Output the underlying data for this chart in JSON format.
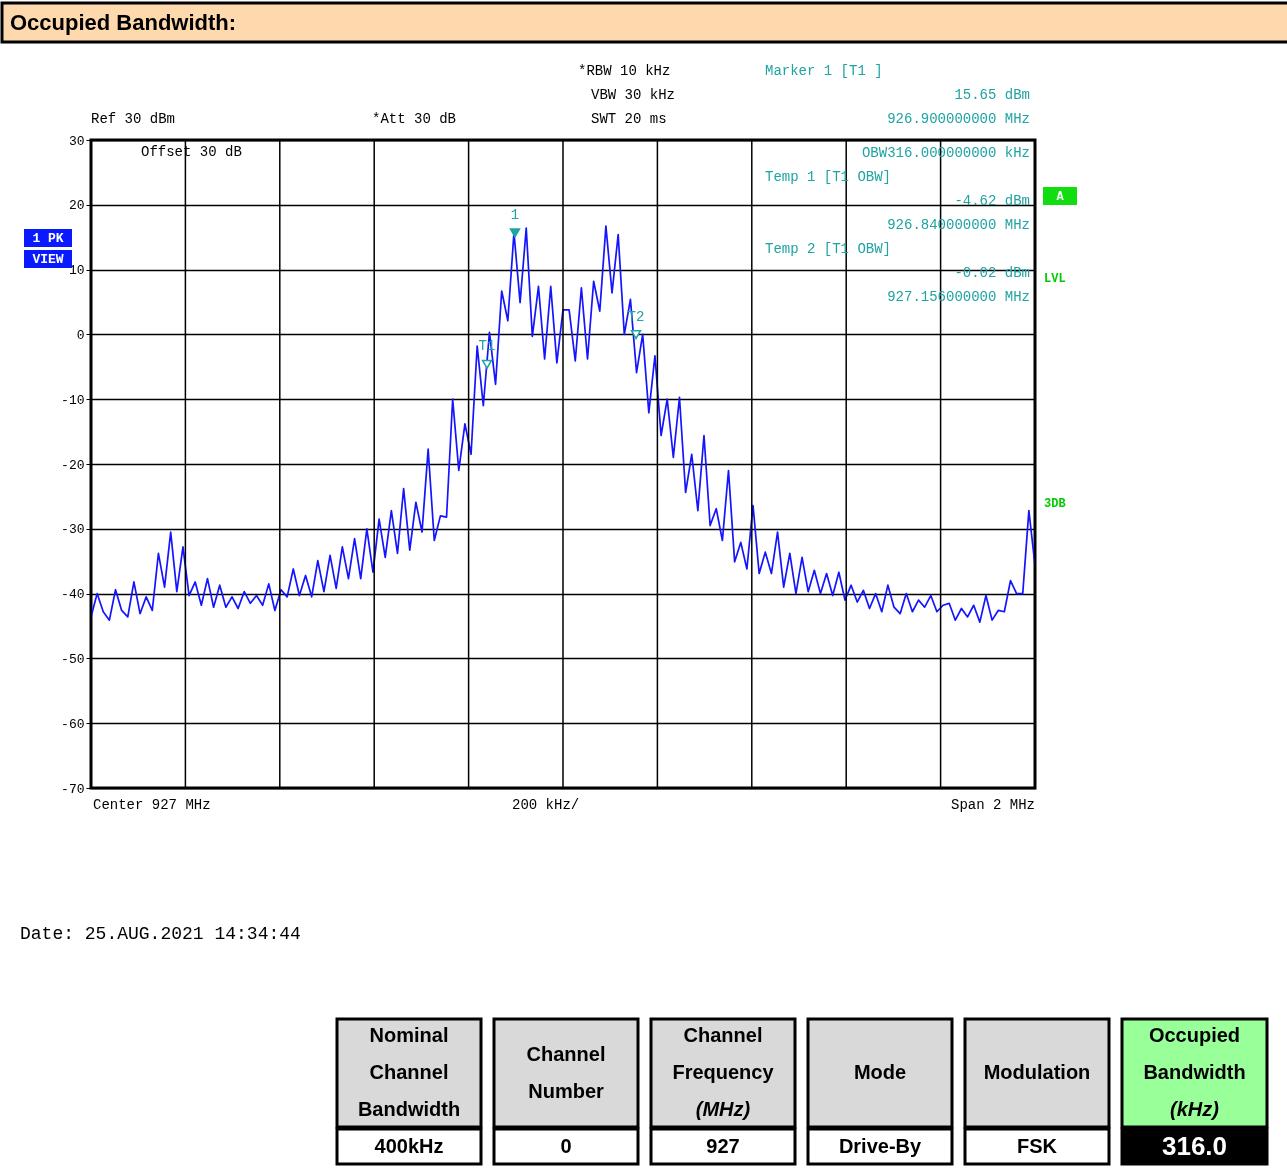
{
  "chart_data": {
    "type": "line",
    "title": "Occupied Bandwidth:",
    "categories": [
      null,
      null,
      null,
      null,
      null,
      null,
      null,
      null,
      null,
      null,
      null,
      null,
      null,
      null,
      null,
      null,
      null,
      null,
      null,
      null,
      null,
      null,
      null,
      null,
      null,
      null,
      null,
      null,
      null,
      null,
      null,
      null,
      null,
      null,
      null,
      null,
      null,
      null,
      null,
      null,
      null,
      null,
      null,
      null,
      null,
      null,
      null,
      null,
      null,
      null,
      null,
      null,
      null,
      null,
      null,
      null,
      null,
      null,
      null,
      null,
      null,
      null,
      null,
      null,
      null,
      null,
      null,
      null,
      null,
      null,
      null,
      null,
      null,
      null,
      null,
      null,
      null,
      null,
      null,
      null,
      null,
      null,
      null,
      null,
      null,
      null,
      null,
      null,
      null,
      null,
      null,
      null,
      null,
      null,
      null,
      null,
      null,
      null,
      null,
      null,
      null,
      null,
      null,
      null,
      null,
      null,
      null,
      null,
      null,
      null,
      null,
      null,
      null,
      null,
      null,
      null,
      null,
      null,
      null,
      null,
      null,
      null,
      null,
      null,
      null,
      null,
      null,
      null,
      null,
      null,
      null,
      null,
      null,
      null,
      null,
      null,
      null,
      null,
      null,
      null,
      null,
      null,
      null,
      null,
      null,
      null,
      null,
      null,
      null,
      null,
      null,
      null,
      null,
      null,
      null
    ],
    "ylim": [
      -70,
      30
    ],
    "yticks": [
      30,
      20,
      10,
      0,
      -10,
      -20,
      -30,
      -40,
      -50,
      -60,
      -70
    ],
    "grid": true,
    "line_style": "solid",
    "series": [
      {
        "color": "#1414ff",
        "values": [
          -43.6,
          -40.0,
          -42.8,
          -44.1,
          -39.4,
          -42.6,
          -43.6,
          -38.2,
          -43.1,
          -40.5,
          -42.6,
          -33.8,
          -39.0,
          -30.5,
          -39.7,
          -32.8,
          -40.3,
          -38.2,
          -41.8,
          -37.7,
          -42.1,
          -38.7,
          -42.1,
          -40.5,
          -42.3,
          -39.7,
          -41.5,
          -40.3,
          -41.8,
          -38.5,
          -42.6,
          -39.4,
          -40.5,
          -36.2,
          -40.3,
          -37.2,
          -40.5,
          -34.9,
          -39.7,
          -34.1,
          -39.2,
          -32.8,
          -37.7,
          -31.5,
          -37.7,
          -30.0,
          -36.7,
          -28.5,
          -34.4,
          -27.2,
          -33.8,
          -23.8,
          -33.3,
          -25.9,
          -30.5,
          -17.7,
          -31.8,
          -28.0,
          -28.2,
          -10.0,
          -21.0,
          -13.8,
          -18.5,
          -1.8,
          -11.0,
          0.3,
          -7.7,
          6.7,
          2.1,
          15.7,
          4.9,
          16.4,
          -0.3,
          7.4,
          -3.8,
          7.4,
          -4.4,
          3.8,
          3.8,
          -4.1,
          7.2,
          -3.8,
          8.2,
          3.6,
          16.7,
          6.4,
          15.4,
          0.0,
          5.4,
          -5.9,
          0.0,
          -12.1,
          -3.3,
          -15.6,
          -10.0,
          -19.0,
          -9.7,
          -24.4,
          -18.5,
          -27.2,
          -15.6,
          -29.5,
          -26.9,
          -31.8,
          -21.0,
          -35.1,
          -32.1,
          -36.2,
          -26.4,
          -36.9,
          -33.6,
          -36.9,
          -30.5,
          -39.0,
          -33.8,
          -40.0,
          -34.4,
          -39.7,
          -36.4,
          -40.0,
          -36.9,
          -40.3,
          -36.7,
          -41.0,
          -38.7,
          -41.3,
          -39.5,
          -42.3,
          -40.0,
          -42.8,
          -38.7,
          -42.1,
          -43.1,
          -40.0,
          -42.8,
          -41.0,
          -42.1,
          -40.3,
          -42.8,
          -41.8,
          -41.5,
          -44.1,
          -42.3,
          -43.6,
          -41.8,
          -44.4,
          -40.3,
          -44.1,
          -42.6,
          -42.8,
          -38.0,
          -40.0,
          -40.0,
          -27.2,
          -35.6
        ]
      }
    ],
    "annotations": [
      "Ref 30 dBm",
      "*Att 30 dB",
      "*RBW 10 kHz",
      "VBW 30 kHz",
      "SWT 20 ms",
      "Marker 1 [T1 ]",
      "15.65 dBm",
      "926.900000000 MHz",
      "Offset 30 dB",
      "OBW316.000000000 kHz",
      "Temp 1 [T1 OBW]",
      "-4.62 dBm",
      "926.840000000 MHz",
      "Temp 2 [T1 OBW]",
      "-0.02 dBm",
      "927.156000000 MHz",
      "1 PK",
      "VIEW",
      "A",
      "LVL",
      "3DB",
      "Center 927 MHz",
      "200 kHz/",
      "Span 2 MHz",
      "Date: 25.AUG.2021 14:34:44",
      "Nominal\nChannel\nBandwidth",
      "Channel\nNumber",
      "Channel\nFrequency\n(MHz)",
      "Mode",
      "Modulation",
      "Occupied\nBandwidth\n(kHz)",
      "400kHz",
      "0",
      "927",
      "Drive-By",
      "FSK",
      "316.0",
      {
        "text": "1",
        "y": 15.65
      },
      {
        "text": "T1",
        "y": -4.62
      },
      {
        "text": "T2",
        "y": -0.02
      }
    ]
  }
}
